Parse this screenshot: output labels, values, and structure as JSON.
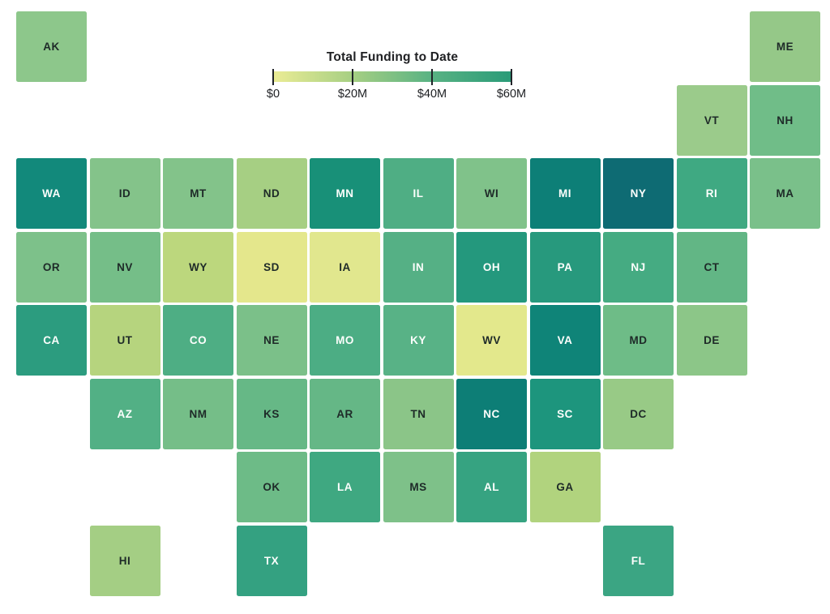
{
  "legend": {
    "title": "Total Funding to Date",
    "tick_labels": [
      "$0",
      "$20M",
      "$40M",
      "$60M"
    ],
    "gradient_colors": [
      "#EBEC95",
      "#A6CF83",
      "#58B283",
      "#2A9B78"
    ]
  },
  "chart_data": {
    "type": "heatmap",
    "subtype": "us-state-tile-cartogram",
    "title": "Total Funding to Date",
    "unit": "USD millions, estimated from color scale",
    "color_scale": {
      "tick_labels": [
        "$0",
        "$20M",
        "$40M",
        "$60M"
      ],
      "colors": [
        "#EBEC95",
        "#A6CF83",
        "#58B283",
        "#2A9B78"
      ]
    },
    "states": [
      {
        "label": "AK",
        "row": 0,
        "col": 0,
        "color": "#8DC78B",
        "label_style": "dark",
        "value_est_musd": 15
      },
      {
        "label": "ME",
        "row": 0,
        "col": 10,
        "color": "#95C888",
        "label_style": "dark",
        "value_est_musd": 15
      },
      {
        "label": "VT",
        "row": 1,
        "col": 9,
        "color": "#9BCB8B",
        "label_style": "dark",
        "value_est_musd": 14
      },
      {
        "label": "NH",
        "row": 1,
        "col": 10,
        "color": "#70BD88",
        "label_style": "dark",
        "value_est_musd": 21
      },
      {
        "label": "WA",
        "row": 2,
        "col": 0,
        "color": "#12897B",
        "label_style": "light",
        "value_est_musd": 55
      },
      {
        "label": "ID",
        "row": 2,
        "col": 1,
        "color": "#84C38A",
        "label_style": "dark",
        "value_est_musd": 17
      },
      {
        "label": "MT",
        "row": 2,
        "col": 2,
        "color": "#83C38A",
        "label_style": "dark",
        "value_est_musd": 17
      },
      {
        "label": "ND",
        "row": 2,
        "col": 3,
        "color": "#A6CF83",
        "label_style": "dark",
        "value_est_musd": 12
      },
      {
        "label": "MN",
        "row": 2,
        "col": 4,
        "color": "#189078",
        "label_style": "light",
        "value_est_musd": 50
      },
      {
        "label": "IL",
        "row": 2,
        "col": 5,
        "color": "#4FAE84",
        "label_style": "light",
        "value_est_musd": 28
      },
      {
        "label": "WI",
        "row": 2,
        "col": 6,
        "color": "#80C28A",
        "label_style": "dark",
        "value_est_musd": 18
      },
      {
        "label": "MI",
        "row": 2,
        "col": 7,
        "color": "#0D7F77",
        "label_style": "light",
        "value_est_musd": 62
      },
      {
        "label": "NY",
        "row": 2,
        "col": 8,
        "color": "#0E6B73",
        "label_style": "light",
        "value_est_musd": 75
      },
      {
        "label": "RI",
        "row": 2,
        "col": 9,
        "color": "#3FA982",
        "label_style": "light",
        "value_est_musd": 32
      },
      {
        "label": "MA",
        "row": 2,
        "col": 10,
        "color": "#7AC08A",
        "label_style": "dark",
        "value_est_musd": 19
      },
      {
        "label": "OR",
        "row": 3,
        "col": 0,
        "color": "#7DC18A",
        "label_style": "dark",
        "value_est_musd": 18
      },
      {
        "label": "NV",
        "row": 3,
        "col": 1,
        "color": "#75BE88",
        "label_style": "dark",
        "value_est_musd": 20
      },
      {
        "label": "WY",
        "row": 3,
        "col": 2,
        "color": "#BCD77D",
        "label_style": "dark",
        "value_est_musd": 8
      },
      {
        "label": "SD",
        "row": 3,
        "col": 3,
        "color": "#E4E78C",
        "label_style": "dark",
        "value_est_musd": 3
      },
      {
        "label": "IA",
        "row": 3,
        "col": 4,
        "color": "#E1E78E",
        "label_style": "dark",
        "value_est_musd": 4
      },
      {
        "label": "IN",
        "row": 3,
        "col": 5,
        "color": "#55B085",
        "label_style": "light",
        "value_est_musd": 27
      },
      {
        "label": "OH",
        "row": 3,
        "col": 6,
        "color": "#24987D",
        "label_style": "light",
        "value_est_musd": 43
      },
      {
        "label": "PA",
        "row": 3,
        "col": 7,
        "color": "#27997D",
        "label_style": "light",
        "value_est_musd": 42
      },
      {
        "label": "NJ",
        "row": 3,
        "col": 8,
        "color": "#45AB82",
        "label_style": "light",
        "value_est_musd": 31
      },
      {
        "label": "CT",
        "row": 3,
        "col": 9,
        "color": "#62B685",
        "label_style": "dark",
        "value_est_musd": 24
      },
      {
        "label": "CA",
        "row": 4,
        "col": 0,
        "color": "#2C9C7F",
        "label_style": "light",
        "value_est_musd": 40
      },
      {
        "label": "UT",
        "row": 4,
        "col": 1,
        "color": "#B6D47E",
        "label_style": "dark",
        "value_est_musd": 9
      },
      {
        "label": "CO",
        "row": 4,
        "col": 2,
        "color": "#4EAE84",
        "label_style": "light",
        "value_est_musd": 28
      },
      {
        "label": "NE",
        "row": 4,
        "col": 3,
        "color": "#7BC089",
        "label_style": "dark",
        "value_est_musd": 19
      },
      {
        "label": "MO",
        "row": 4,
        "col": 4,
        "color": "#4CAD84",
        "label_style": "light",
        "value_est_musd": 29
      },
      {
        "label": "KY",
        "row": 4,
        "col": 5,
        "color": "#58B286",
        "label_style": "light",
        "value_est_musd": 26
      },
      {
        "label": "WV",
        "row": 4,
        "col": 6,
        "color": "#E3E88C",
        "label_style": "dark",
        "value_est_musd": 3
      },
      {
        "label": "VA",
        "row": 4,
        "col": 7,
        "color": "#0F8478",
        "label_style": "light",
        "value_est_musd": 58
      },
      {
        "label": "MD",
        "row": 4,
        "col": 8,
        "color": "#6EBC87",
        "label_style": "dark",
        "value_est_musd": 21
      },
      {
        "label": "DE",
        "row": 4,
        "col": 9,
        "color": "#8CC688",
        "label_style": "dark",
        "value_est_musd": 16
      },
      {
        "label": "AZ",
        "row": 5,
        "col": 1,
        "color": "#52B085",
        "label_style": "light",
        "value_est_musd": 27
      },
      {
        "label": "NM",
        "row": 5,
        "col": 2,
        "color": "#75BE88",
        "label_style": "dark",
        "value_est_musd": 20
      },
      {
        "label": "KS",
        "row": 5,
        "col": 3,
        "color": "#66B886",
        "label_style": "dark",
        "value_est_musd": 23
      },
      {
        "label": "AR",
        "row": 5,
        "col": 4,
        "color": "#65B786",
        "label_style": "dark",
        "value_est_musd": 23
      },
      {
        "label": "TN",
        "row": 5,
        "col": 5,
        "color": "#8BC588",
        "label_style": "dark",
        "value_est_musd": 16
      },
      {
        "label": "NC",
        "row": 5,
        "col": 6,
        "color": "#0D7E76",
        "label_style": "light",
        "value_est_musd": 62
      },
      {
        "label": "SC",
        "row": 5,
        "col": 7,
        "color": "#1D957D",
        "label_style": "light",
        "value_est_musd": 45
      },
      {
        "label": "DC",
        "row": 5,
        "col": 8,
        "color": "#98CA86",
        "label_style": "dark",
        "value_est_musd": 14
      },
      {
        "label": "OK",
        "row": 6,
        "col": 3,
        "color": "#6DBB87",
        "label_style": "dark",
        "value_est_musd": 21
      },
      {
        "label": "LA",
        "row": 6,
        "col": 4,
        "color": "#3FA881",
        "label_style": "light",
        "value_est_musd": 33
      },
      {
        "label": "MS",
        "row": 6,
        "col": 5,
        "color": "#7EC189",
        "label_style": "dark",
        "value_est_musd": 18
      },
      {
        "label": "AL",
        "row": 6,
        "col": 6,
        "color": "#36A381",
        "label_style": "light",
        "value_est_musd": 35
      },
      {
        "label": "GA",
        "row": 6,
        "col": 7,
        "color": "#B1D37E",
        "label_style": "dark",
        "value_est_musd": 10
      },
      {
        "label": "HI",
        "row": 7,
        "col": 1,
        "color": "#A4CE84",
        "label_style": "dark",
        "value_est_musd": 12
      },
      {
        "label": "TX",
        "row": 7,
        "col": 3,
        "color": "#34A181",
        "label_style": "light",
        "value_est_musd": 36
      },
      {
        "label": "FL",
        "row": 7,
        "col": 8,
        "color": "#3BA583",
        "label_style": "light",
        "value_est_musd": 34
      }
    ]
  }
}
